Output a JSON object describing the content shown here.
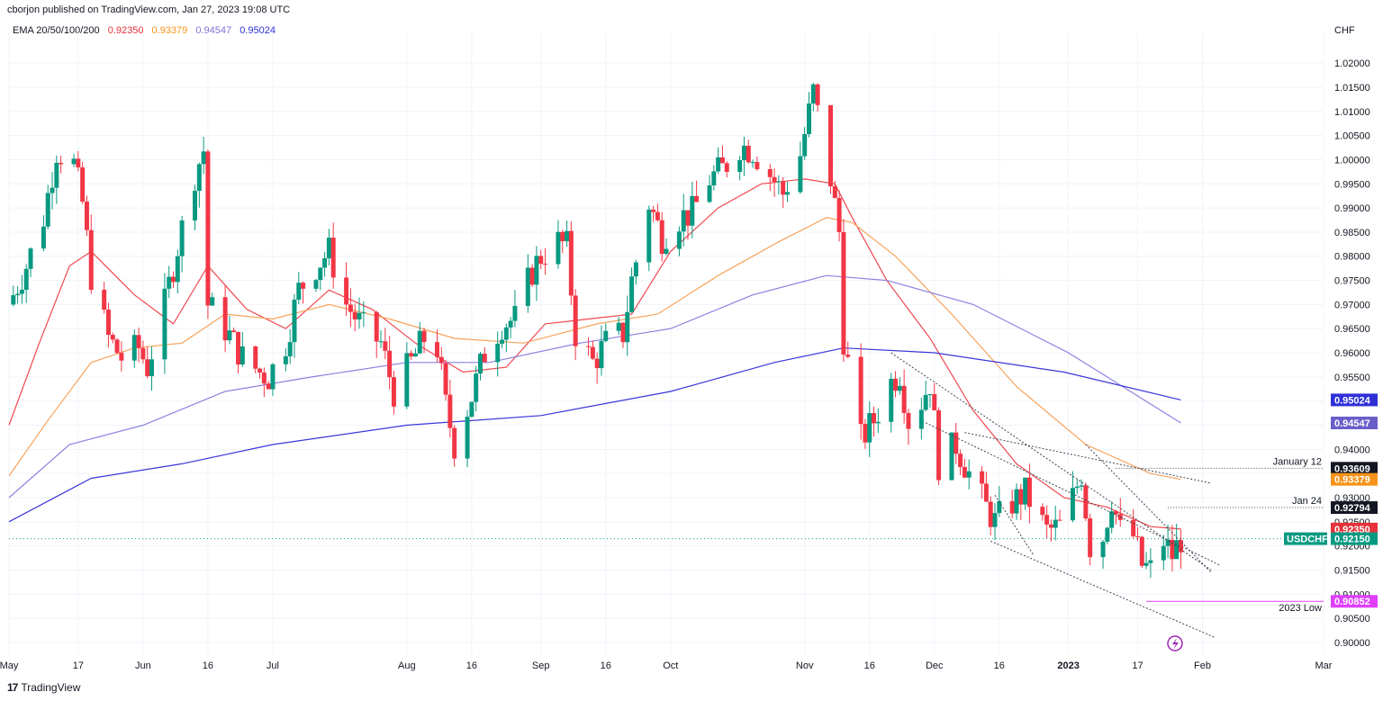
{
  "header": {
    "publisher_line": "cborjon published on TradingView.com, Jan 27, 2023 19:08 UTC",
    "ema_label": "EMA 20/50/100/200",
    "ema_values": [
      {
        "text": "0.92350",
        "color": "#e5323b"
      },
      {
        "text": "0.93379",
        "color": "#f7931a"
      },
      {
        "text": "0.94547",
        "color": "#7e73d9"
      },
      {
        "text": "0.95024",
        "color": "#2f30d8"
      }
    ]
  },
  "footer": {
    "brand": "TradingView",
    "brand_mark": "17"
  },
  "chart_data": {
    "type": "candlestick",
    "symbol": "USDCHF",
    "currency_label": "CHF",
    "x_range": [
      "2022-05-01",
      "2023-03-01"
    ],
    "y_range": [
      0.8985,
      1.0245
    ],
    "y_ticks": [
      "0.90000",
      "0.90500",
      "0.91000",
      "0.91500",
      "0.92000",
      "0.92500",
      "0.93000",
      "0.93500",
      "0.94000",
      "0.94500",
      "0.95000",
      "0.95500",
      "0.96000",
      "0.96500",
      "0.97000",
      "0.97500",
      "0.98000",
      "0.98500",
      "0.99000",
      "0.99500",
      "1.00000",
      "1.00500",
      "1.01000",
      "1.01500",
      "1.02000"
    ],
    "x_ticks": [
      {
        "date": "2022-05-01",
        "label": "May",
        "bold": false
      },
      {
        "date": "2022-05-17",
        "label": "17",
        "bold": false
      },
      {
        "date": "2022-06-01",
        "label": "Jun",
        "bold": false
      },
      {
        "date": "2022-06-16",
        "label": "16",
        "bold": false
      },
      {
        "date": "2022-07-01",
        "label": "Jul",
        "bold": false
      },
      {
        "date": "2022-08-01",
        "label": "Aug",
        "bold": false
      },
      {
        "date": "2022-08-16",
        "label": "16",
        "bold": false
      },
      {
        "date": "2022-09-01",
        "label": "Sep",
        "bold": false
      },
      {
        "date": "2022-09-16",
        "label": "16",
        "bold": false
      },
      {
        "date": "2022-10-01",
        "label": "Oct",
        "bold": false
      },
      {
        "date": "2022-11-01",
        "label": "Nov",
        "bold": false
      },
      {
        "date": "2022-11-16",
        "label": "16",
        "bold": false
      },
      {
        "date": "2022-12-01",
        "label": "Dec",
        "bold": false
      },
      {
        "date": "2022-12-16",
        "label": "16",
        "bold": false
      },
      {
        "date": "2023-01-01",
        "label": "2023",
        "bold": true
      },
      {
        "date": "2023-01-17",
        "label": "17",
        "bold": false
      },
      {
        "date": "2023-02-01",
        "label": "Feb",
        "bold": false
      },
      {
        "date": "2023-03-01",
        "label": "Mar",
        "bold": false
      }
    ],
    "price_path": [
      [
        "2022-05-01",
        0.97
      ],
      [
        "2022-05-05",
        0.978
      ],
      [
        "2022-05-09",
        0.988
      ],
      [
        "2022-05-12",
        1.002
      ],
      [
        "2022-05-16",
        0.999
      ],
      [
        "2022-05-18",
        0.991
      ],
      [
        "2022-05-20",
        0.976
      ],
      [
        "2022-05-24",
        0.963
      ],
      [
        "2022-05-27",
        0.959
      ],
      [
        "2022-05-31",
        0.961
      ],
      [
        "2022-06-02",
        0.957
      ],
      [
        "2022-06-06",
        0.97
      ],
      [
        "2022-06-09",
        0.982
      ],
      [
        "2022-06-13",
        0.997
      ],
      [
        "2022-06-15",
        1.002
      ],
      [
        "2022-06-16",
        0.97
      ],
      [
        "2022-06-20",
        0.965
      ],
      [
        "2022-06-24",
        0.959
      ],
      [
        "2022-06-28",
        0.956
      ],
      [
        "2022-06-30",
        0.955
      ],
      [
        "2022-07-04",
        0.962
      ],
      [
        "2022-07-07",
        0.973
      ],
      [
        "2022-07-11",
        0.978
      ],
      [
        "2022-07-14",
        0.981
      ],
      [
        "2022-07-18",
        0.97
      ],
      [
        "2022-07-22",
        0.965
      ],
      [
        "2022-07-26",
        0.962
      ],
      [
        "2022-07-29",
        0.952
      ],
      [
        "2022-08-02",
        0.958
      ],
      [
        "2022-08-05",
        0.963
      ],
      [
        "2022-08-08",
        0.961
      ],
      [
        "2022-08-10",
        0.949
      ],
      [
        "2022-08-12",
        0.941
      ],
      [
        "2022-08-16",
        0.951
      ],
      [
        "2022-08-19",
        0.96
      ],
      [
        "2022-08-23",
        0.966
      ],
      [
        "2022-08-26",
        0.967
      ],
      [
        "2022-08-30",
        0.977
      ],
      [
        "2022-09-01",
        0.98
      ],
      [
        "2022-09-05",
        0.983
      ],
      [
        "2022-09-07",
        0.982
      ],
      [
        "2022-09-09",
        0.964
      ],
      [
        "2022-09-13",
        0.958
      ],
      [
        "2022-09-16",
        0.962
      ],
      [
        "2022-09-20",
        0.964
      ],
      [
        "2022-09-22",
        0.975
      ],
      [
        "2022-09-26",
        0.991
      ],
      [
        "2022-09-29",
        0.984
      ],
      [
        "2022-10-03",
        0.988
      ],
      [
        "2022-10-06",
        0.989
      ],
      [
        "2022-10-10",
        0.996
      ],
      [
        "2022-10-13",
        0.998
      ],
      [
        "2022-10-17",
        1.003
      ],
      [
        "2022-10-20",
        1.002
      ],
      [
        "2022-10-24",
        0.997
      ],
      [
        "2022-10-27",
        0.993
      ],
      [
        "2022-10-31",
        1.001
      ],
      [
        "2022-11-03",
        1.014
      ],
      [
        "2022-11-07",
        0.996
      ],
      [
        "2022-11-09",
        0.985
      ],
      [
        "2022-11-10",
        0.963
      ],
      [
        "2022-11-14",
        0.942
      ],
      [
        "2022-11-17",
        0.946
      ],
      [
        "2022-11-21",
        0.954
      ],
      [
        "2022-11-23",
        0.956
      ],
      [
        "2022-11-25",
        0.946
      ],
      [
        "2022-11-28",
        0.95
      ],
      [
        "2022-11-30",
        0.954
      ],
      [
        "2022-12-02",
        0.937
      ],
      [
        "2022-12-06",
        0.941
      ],
      [
        "2022-12-09",
        0.935
      ],
      [
        "2022-12-13",
        0.928
      ],
      [
        "2022-12-15",
        0.925
      ],
      [
        "2022-12-19",
        0.929
      ],
      [
        "2022-12-22",
        0.931
      ],
      [
        "2022-12-27",
        0.923
      ],
      [
        "2022-12-30",
        0.924
      ],
      [
        "2023-01-02",
        0.93
      ],
      [
        "2023-01-04",
        0.935
      ],
      [
        "2023-01-06",
        0.92
      ],
      [
        "2023-01-09",
        0.922
      ],
      [
        "2023-01-11",
        0.93
      ],
      [
        "2023-01-13",
        0.923
      ],
      [
        "2023-01-16",
        0.922
      ],
      [
        "2023-01-18",
        0.916
      ],
      [
        "2023-01-20",
        0.915
      ],
      [
        "2023-01-23",
        0.921
      ],
      [
        "2023-01-25",
        0.918
      ],
      [
        "2023-01-27",
        0.9215
      ]
    ],
    "series": [
      {
        "name": "EMA 20",
        "color": "#f0474f",
        "points": [
          [
            "2022-05-01",
            0.945
          ],
          [
            "2022-05-08",
            0.962
          ],
          [
            "2022-05-15",
            0.978
          ],
          [
            "2022-05-20",
            0.981
          ],
          [
            "2022-05-30",
            0.972
          ],
          [
            "2022-06-08",
            0.966
          ],
          [
            "2022-06-16",
            0.978
          ],
          [
            "2022-06-25",
            0.969
          ],
          [
            "2022-07-04",
            0.965
          ],
          [
            "2022-07-14",
            0.973
          ],
          [
            "2022-07-24",
            0.969
          ],
          [
            "2022-08-03",
            0.962
          ],
          [
            "2022-08-14",
            0.956
          ],
          [
            "2022-08-24",
            0.957
          ],
          [
            "2022-09-02",
            0.966
          ],
          [
            "2022-09-12",
            0.967
          ],
          [
            "2022-09-22",
            0.968
          ],
          [
            "2022-10-01",
            0.981
          ],
          [
            "2022-10-12",
            0.99
          ],
          [
            "2022-10-22",
            0.995
          ],
          [
            "2022-11-01",
            0.996
          ],
          [
            "2022-11-08",
            0.995
          ],
          [
            "2022-11-12",
            0.988
          ],
          [
            "2022-11-20",
            0.975
          ],
          [
            "2022-11-30",
            0.963
          ],
          [
            "2022-12-10",
            0.948
          ],
          [
            "2022-12-20",
            0.937
          ],
          [
            "2022-12-31",
            0.93
          ],
          [
            "2023-01-10",
            0.928
          ],
          [
            "2023-01-20",
            0.924
          ],
          [
            "2023-01-27",
            0.9235
          ]
        ]
      },
      {
        "name": "EMA 50",
        "color": "#f7a35c",
        "points": [
          [
            "2022-05-01",
            0.9345
          ],
          [
            "2022-05-10",
            0.946
          ],
          [
            "2022-05-20",
            0.958
          ],
          [
            "2022-05-30",
            0.961
          ],
          [
            "2022-06-10",
            0.962
          ],
          [
            "2022-06-20",
            0.968
          ],
          [
            "2022-07-01",
            0.967
          ],
          [
            "2022-07-14",
            0.97
          ],
          [
            "2022-07-28",
            0.967
          ],
          [
            "2022-08-12",
            0.963
          ],
          [
            "2022-08-28",
            0.962
          ],
          [
            "2022-09-14",
            0.966
          ],
          [
            "2022-09-28",
            0.968
          ],
          [
            "2022-10-12",
            0.976
          ],
          [
            "2022-10-26",
            0.983
          ],
          [
            "2022-11-06",
            0.988
          ],
          [
            "2022-11-12",
            0.987
          ],
          [
            "2022-11-22",
            0.98
          ],
          [
            "2022-12-05",
            0.968
          ],
          [
            "2022-12-20",
            0.953
          ],
          [
            "2023-01-05",
            0.941
          ],
          [
            "2023-01-20",
            0.935
          ],
          [
            "2023-01-27",
            0.93379
          ]
        ]
      },
      {
        "name": "EMA 100",
        "color": "#8a82e0",
        "points": [
          [
            "2022-05-01",
            0.93
          ],
          [
            "2022-05-15",
            0.941
          ],
          [
            "2022-06-01",
            0.945
          ],
          [
            "2022-06-20",
            0.952
          ],
          [
            "2022-07-10",
            0.955
          ],
          [
            "2022-08-01",
            0.958
          ],
          [
            "2022-08-20",
            0.958
          ],
          [
            "2022-09-10",
            0.962
          ],
          [
            "2022-10-01",
            0.965
          ],
          [
            "2022-10-20",
            0.972
          ],
          [
            "2022-11-06",
            0.976
          ],
          [
            "2022-11-20",
            0.975
          ],
          [
            "2022-12-10",
            0.97
          ],
          [
            "2023-01-01",
            0.96
          ],
          [
            "2023-01-27",
            0.94547
          ]
        ]
      },
      {
        "name": "EMA 200",
        "color": "#3b36d9",
        "points": [
          [
            "2022-05-01",
            0.925
          ],
          [
            "2022-05-20",
            0.934
          ],
          [
            "2022-06-10",
            0.937
          ],
          [
            "2022-07-01",
            0.941
          ],
          [
            "2022-08-01",
            0.945
          ],
          [
            "2022-09-01",
            0.947
          ],
          [
            "2022-10-01",
            0.952
          ],
          [
            "2022-10-25",
            0.958
          ],
          [
            "2022-11-10",
            0.961
          ],
          [
            "2022-12-01",
            0.96
          ],
          [
            "2022-12-31",
            0.956
          ],
          [
            "2023-01-27",
            0.95024
          ]
        ]
      }
    ],
    "trendlines": [
      {
        "from": [
          "2022-11-21",
          0.96
        ],
        "to": [
          "2023-02-03",
          0.915
        ]
      },
      {
        "from": [
          "2022-11-29",
          0.9455
        ],
        "to": [
          "2023-02-05",
          0.916
        ]
      },
      {
        "from": [
          "2022-12-08",
          0.9435
        ],
        "to": [
          "2023-02-03",
          0.933
        ]
      },
      {
        "from": [
          "2023-01-05",
          0.941
        ],
        "to": [
          "2023-02-03",
          0.9145
        ]
      },
      {
        "from": [
          "2022-12-15",
          0.9305
        ],
        "to": [
          "2022-12-24",
          0.918
        ]
      },
      {
        "from": [
          "2022-12-14",
          0.921
        ],
        "to": [
          "2023-02-04",
          0.901
        ]
      }
    ],
    "levels": [
      {
        "label": "January 12",
        "value_text": "0.93609",
        "value": 0.93609,
        "from": "2023-01-12",
        "bg": "#131722"
      },
      {
        "label": "Jan 24",
        "value_text": "0.92794",
        "value": 0.92794,
        "from": "2023-01-24",
        "bg": "#131722"
      },
      {
        "label": "2023 Low",
        "value_text": "0.90852",
        "value": 0.90852,
        "from": "2023-01-19",
        "bg": "#e040fb"
      }
    ],
    "badges": [
      {
        "text": "0.95024",
        "value": 0.95024,
        "bg": "#2f30d8"
      },
      {
        "text": "0.94547",
        "value": 0.94547,
        "bg": "#6a5fc9"
      },
      {
        "text": "0.93609",
        "value": 0.93609,
        "bg": "#131722"
      },
      {
        "text": "0.93379",
        "value": 0.93379,
        "bg": "#f7931a"
      },
      {
        "text": "0.92794",
        "value": 0.92794,
        "bg": "#131722"
      },
      {
        "text": "0.92350",
        "value": 0.9235,
        "bg": "#e5323b"
      },
      {
        "text": "0.92150",
        "value": 0.9215,
        "bg": "#089981"
      },
      {
        "text": "0.90852",
        "value": 0.90852,
        "bg": "#e040fb"
      }
    ],
    "symbol_badge": {
      "text": "USDCHF",
      "value": 0.9215,
      "bg": "#089981"
    },
    "current_price": 0.9215,
    "colors": {
      "up": "#089981",
      "down": "#f23645",
      "grid": "#f0f3fa"
    }
  }
}
